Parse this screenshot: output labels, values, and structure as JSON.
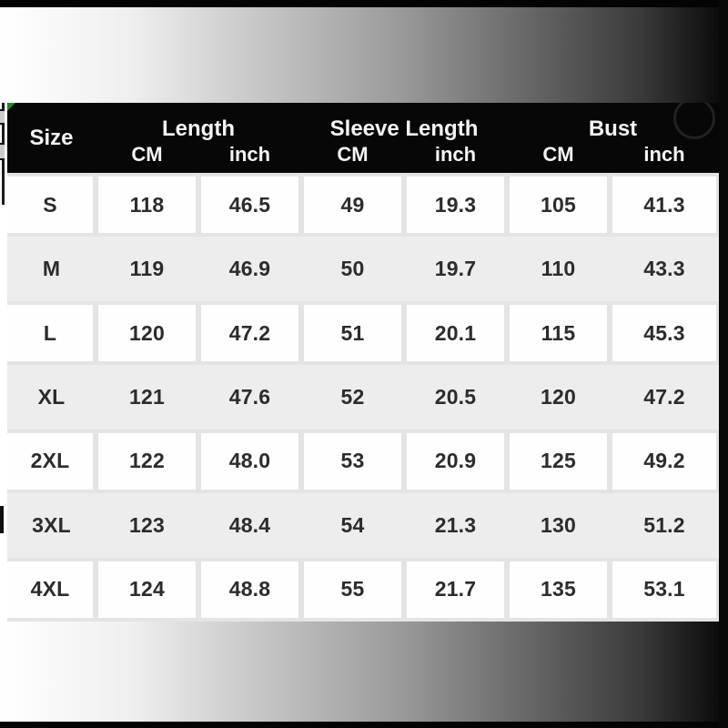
{
  "table": {
    "header": {
      "size_label": "Size",
      "groups": [
        {
          "label": "Length",
          "cm_label": "CM",
          "inch_label": "inch"
        },
        {
          "label": "Sleeve Length",
          "cm_label": "CM",
          "inch_label": "inch"
        },
        {
          "label": "Bust",
          "cm_label": "CM",
          "inch_label": "inch"
        }
      ]
    },
    "rows": [
      {
        "size": "S",
        "values": [
          "118",
          "46.5",
          "49",
          "19.3",
          "105",
          "41.3"
        ]
      },
      {
        "size": "M",
        "values": [
          "119",
          "46.9",
          "50",
          "19.7",
          "110",
          "43.3"
        ]
      },
      {
        "size": "L",
        "values": [
          "120",
          "47.2",
          "51",
          "20.1",
          "115",
          "45.3"
        ]
      },
      {
        "size": "XL",
        "values": [
          "121",
          "47.6",
          "52",
          "20.5",
          "120",
          "47.2"
        ]
      },
      {
        "size": "2XL",
        "values": [
          "122",
          "48.0",
          "53",
          "20.9",
          "125",
          "49.2"
        ]
      },
      {
        "size": "3XL",
        "values": [
          "123",
          "48.4",
          "54",
          "21.3",
          "130",
          "51.2"
        ]
      },
      {
        "size": "4XL",
        "values": [
          "124",
          "48.8",
          "55",
          "21.7",
          "135",
          "53.1"
        ]
      }
    ]
  },
  "decorations": {
    "corner_marker_icon": "green-corner-triangle",
    "header_circle_icon": "faint-circle"
  },
  "colors": {
    "header_bg": "#070707",
    "header_text": "#f5f5f5",
    "body_text": "#2c2c2c",
    "row_alt_gray": "#ededed",
    "gap_gray": "#e4e4e4",
    "corner_marker_green": "#1e8a1e"
  }
}
